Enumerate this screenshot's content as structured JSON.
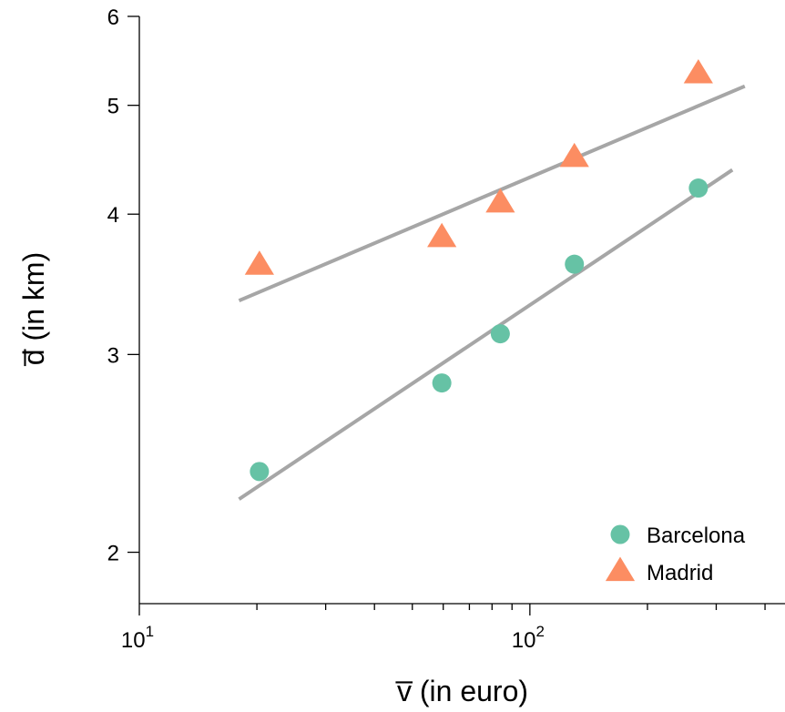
{
  "chart_data": {
    "type": "scatter",
    "xlabel": "v̅ (in euro)",
    "ylabel": "d̅ (in km)",
    "x_scale": "log",
    "y_scale": "log",
    "xlim": [
      10,
      450
    ],
    "ylim": [
      1.8,
      6
    ],
    "x_ticks": [
      {
        "value": 10,
        "base": "10",
        "exp": "1"
      },
      {
        "value": 100,
        "base": "10",
        "exp": "2"
      }
    ],
    "y_ticks": [
      {
        "value": 2,
        "label": "2"
      },
      {
        "value": 3,
        "label": "3"
      },
      {
        "value": 4,
        "label": "4"
      },
      {
        "value": 5,
        "label": "5"
      },
      {
        "value": 6,
        "label": "6"
      }
    ],
    "grid": false,
    "legend_position": "bottom-right",
    "series": [
      {
        "name": "Barcelona",
        "marker": "circle",
        "color": "#66c2a5",
        "points": [
          [
            20.3,
            2.36
          ],
          [
            59.5,
            2.83
          ],
          [
            84,
            3.13
          ],
          [
            130,
            3.61
          ],
          [
            270,
            4.22
          ]
        ],
        "fit_line": [
          [
            18,
            2.23
          ],
          [
            330,
            4.38
          ]
        ]
      },
      {
        "name": "Madrid",
        "marker": "triangle",
        "color": "#fc8d62",
        "points": [
          [
            20.3,
            3.6
          ],
          [
            59.5,
            3.81
          ],
          [
            84,
            4.09
          ],
          [
            130,
            4.49
          ],
          [
            270,
            5.33
          ]
        ],
        "fit_line": [
          [
            18,
            3.35
          ],
          [
            355,
            5.2
          ]
        ]
      }
    ],
    "fit_line_color": "#a6a6a6"
  }
}
